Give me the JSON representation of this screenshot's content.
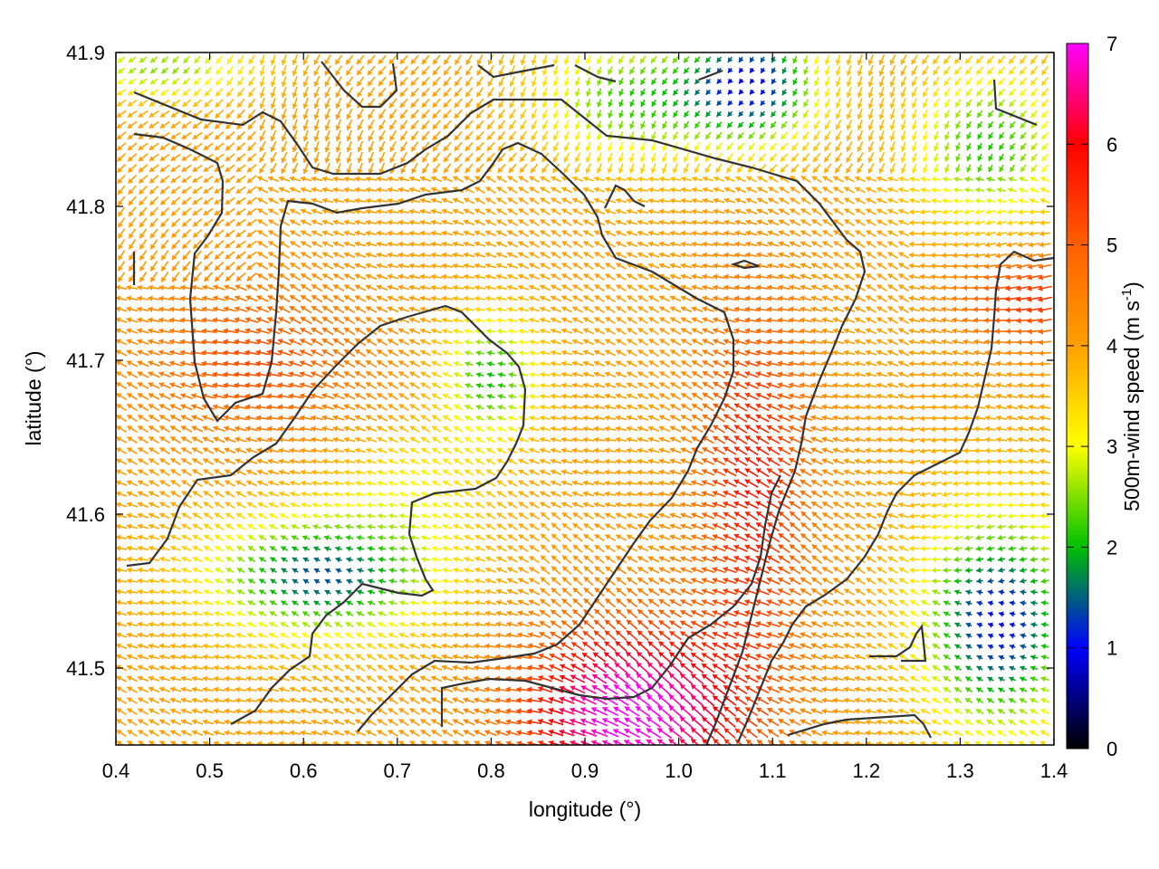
{
  "chart_data": {
    "type": "vector_field",
    "title": "",
    "xlabel": "longitude (°)",
    "ylabel": "latitude (°)",
    "xlim": [
      0.4,
      1.4
    ],
    "ylim": [
      41.45,
      41.9
    ],
    "xticks": [
      0.4,
      0.5,
      0.6,
      0.7,
      0.8,
      0.9,
      1.0,
      1.1,
      1.2,
      1.3,
      1.4
    ],
    "xtick_labels": [
      "0.4",
      "0.5",
      "0.6",
      "0.7",
      "0.8",
      "0.9",
      "1.0",
      "1.1",
      "1.2",
      "1.3",
      "1.4"
    ],
    "yticks": [
      41.5,
      41.6,
      41.7,
      41.8,
      41.9
    ],
    "ytick_labels": [
      "41.5",
      "41.6",
      "41.7",
      "41.8",
      "41.9"
    ],
    "colorbar": {
      "label": "500m-wind speed (m s-1)",
      "label_main": "500m-wind speed (m s",
      "label_sup": "-1",
      "label_end": ")",
      "range": [
        0,
        7
      ],
      "ticks": [
        0,
        1,
        2,
        3,
        4,
        5,
        6,
        7
      ],
      "tick_labels": [
        "0",
        "1",
        "2",
        "3",
        "4",
        "5",
        "6",
        "7"
      ],
      "palette": [
        "#000000",
        "#0000ff",
        "#00c000",
        "#ffff00",
        "#ffa000",
        "#ff6000",
        "#ff0000",
        "#ff00ff"
      ]
    },
    "grid": false,
    "legend": "none",
    "field_description": "Dense field of arrows showing 500m wind vectors colored by speed: strongest (magenta, ~7 m/s) in the south-centre and southeast (~0.95 E, 41.47 N), weakest (blue, ~1 m/s) in the east (~1.35 E, 41.55 N) and north (~1.1 E, 41.89 N)."
  }
}
